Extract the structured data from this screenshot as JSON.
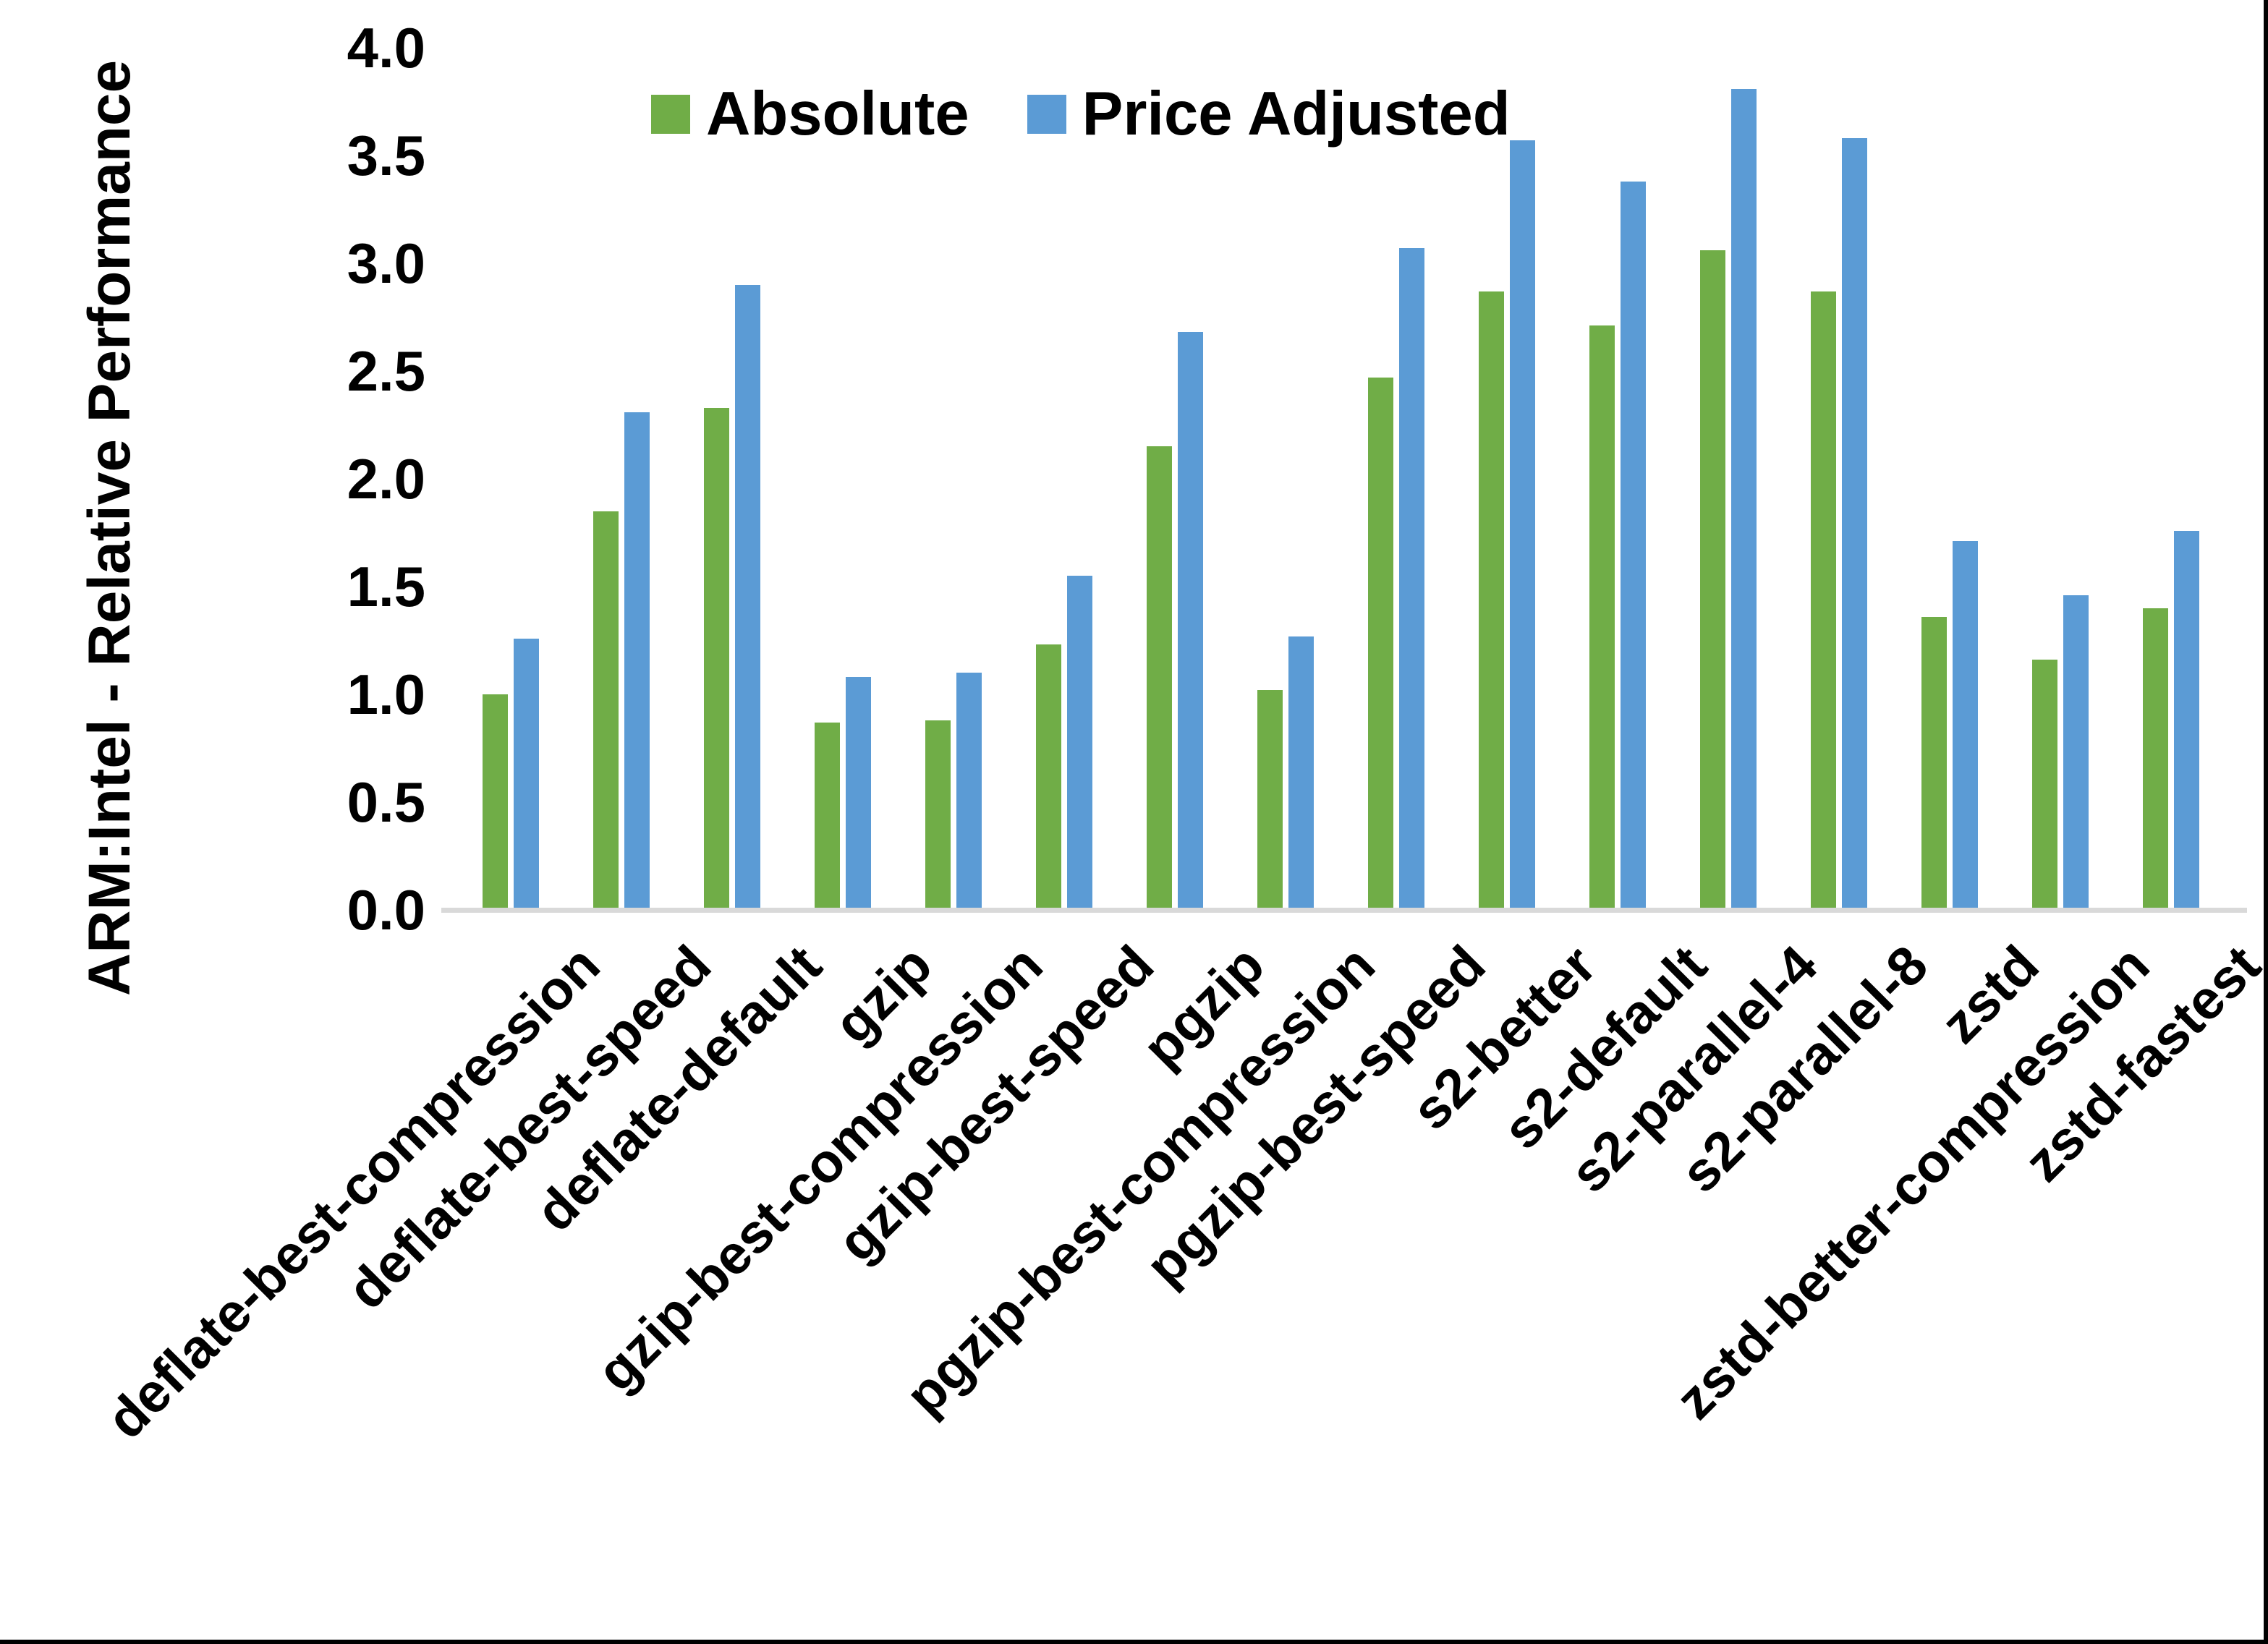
{
  "chart_data": {
    "type": "bar",
    "title": "",
    "ylabel": "ARM:Intel - Relative Performance",
    "xlabel": "",
    "ylim": [
      0,
      4
    ],
    "ytick_step": 0.5,
    "ytick_labels": [
      "4.0",
      "3.5",
      "3.0",
      "2.5",
      "2.0",
      "1.5",
      "1.0",
      "0.5",
      "0.0"
    ],
    "grid": false,
    "legend_position": "top",
    "categories": [
      "deflate-best-compression",
      "deflate-best-speed",
      "deflate-default",
      "gzip",
      "gzip-best-compression",
      "gzip-best-speed",
      "pgzip",
      "pgzip-best-compression",
      "pgzip-best-speed",
      "s2-better",
      "s2-default",
      "s2-parallel-4",
      "s2-parallel-8",
      "zstd",
      "zstd-better-compression",
      "zstd-fastest"
    ],
    "series": [
      {
        "name": "Absolute",
        "color": "#70AD47",
        "values": [
          1.0,
          1.85,
          2.33,
          0.87,
          0.88,
          1.23,
          2.15,
          1.02,
          2.47,
          2.87,
          2.71,
          3.06,
          2.87,
          1.36,
          1.16,
          1.4
        ]
      },
      {
        "name": "Price Adjusted",
        "color": "#5B9BD5",
        "values": [
          1.26,
          2.31,
          2.9,
          1.08,
          1.1,
          1.55,
          2.68,
          1.27,
          3.07,
          3.57,
          3.38,
          3.81,
          3.58,
          1.71,
          1.46,
          1.76
        ]
      }
    ],
    "axis_line_color": "#D9D9D9",
    "text_color": "#000000",
    "background": "#FFFFFF",
    "frame_border_color": "#000000"
  }
}
